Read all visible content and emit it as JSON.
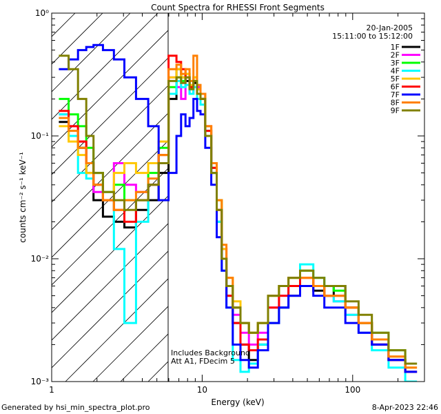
{
  "chart_data": {
    "type": "line",
    "title": "Count Spectra for RHESSI Front Segments",
    "xlabel": "Energy (keV)",
    "ylabel": "counts cm⁻² s⁻¹ keV⁻¹",
    "x_scale": "log",
    "y_scale": "log",
    "xlim": [
      1,
      300
    ],
    "ylim": [
      0.001,
      1
    ],
    "x_ticks": [
      {
        "value": 1,
        "label": "1"
      },
      {
        "value": 10,
        "label": "10"
      },
      {
        "value": 100,
        "label": "100"
      }
    ],
    "y_ticks": [
      {
        "value": 1,
        "label": "10⁰"
      },
      {
        "value": 0.1,
        "label": "10⁻¹"
      },
      {
        "value": 0.01,
        "label": "10⁻²"
      },
      {
        "value": 0.001,
        "label": "10⁻³"
      }
    ],
    "legend": {
      "placement": "top-right",
      "header": [
        "20-Jan-2005",
        "15:11:00 to 15:12:00"
      ]
    },
    "annotations": [
      "Includes Background",
      "Att A1, FDecim 5"
    ],
    "series": [
      {
        "name": "1F",
        "color": "#000000",
        "x": [
          1.2,
          1.4,
          1.6,
          1.8,
          2.0,
          2.4,
          2.8,
          3.3,
          4.0,
          4.8,
          5.5,
          6.5,
          7.0,
          7.5,
          8.0,
          8.5,
          9.0,
          9.5,
          10.0,
          11.0,
          12.0,
          13.0,
          14.0,
          15.0,
          17.0,
          19.0,
          22.0,
          25.0,
          30.0,
          35.0,
          40.0,
          50.0,
          60.0,
          70.0,
          80.0,
          100.0,
          120.0,
          150.0,
          200.0,
          250.0
        ],
        "y": [
          0.13,
          0.1,
          0.08,
          0.05,
          0.03,
          0.022,
          0.02,
          0.018,
          0.025,
          0.03,
          0.05,
          0.2,
          0.35,
          0.3,
          0.28,
          0.25,
          0.27,
          0.24,
          0.2,
          0.1,
          0.05,
          0.02,
          0.01,
          0.005,
          0.003,
          0.002,
          0.0015,
          0.002,
          0.003,
          0.004,
          0.005,
          0.006,
          0.0055,
          0.005,
          0.006,
          0.004,
          0.003,
          0.002,
          0.0015,
          0.0012
        ]
      },
      {
        "name": "2F",
        "color": "#ff00ff",
        "x": [
          1.2,
          1.4,
          1.6,
          1.8,
          2.0,
          2.4,
          2.8,
          3.3,
          4.0,
          4.8,
          5.5,
          6.5,
          7.0,
          7.5,
          8.0,
          8.5,
          9.0,
          9.5,
          10.0,
          11.0,
          12.0,
          13.0,
          14.0,
          15.0,
          17.0,
          19.0,
          22.0,
          25.0,
          30.0,
          35.0,
          40.0,
          50.0,
          60.0,
          70.0,
          80.0,
          100.0,
          120.0,
          150.0,
          200.0,
          250.0
        ],
        "y": [
          0.15,
          0.12,
          0.09,
          0.06,
          0.035,
          0.03,
          0.06,
          0.04,
          0.035,
          0.04,
          0.06,
          0.3,
          0.25,
          0.2,
          0.3,
          0.22,
          0.28,
          0.25,
          0.22,
          0.12,
          0.06,
          0.025,
          0.012,
          0.006,
          0.0035,
          0.0025,
          0.002,
          0.0025,
          0.004,
          0.005,
          0.006,
          0.007,
          0.006,
          0.005,
          0.0045,
          0.0035,
          0.0025,
          0.002,
          0.0015,
          0.0012
        ]
      },
      {
        "name": "3F",
        "color": "#00ff00",
        "x": [
          1.2,
          1.4,
          1.6,
          1.8,
          2.0,
          2.4,
          2.8,
          3.3,
          4.0,
          4.8,
          5.5,
          6.5,
          7.0,
          7.5,
          8.0,
          8.5,
          9.0,
          9.5,
          10.0,
          11.0,
          12.0,
          13.0,
          14.0,
          15.0,
          17.0,
          19.0,
          22.0,
          25.0,
          30.0,
          35.0,
          40.0,
          50.0,
          60.0,
          70.0,
          80.0,
          100.0,
          120.0,
          150.0,
          200.0,
          250.0
        ],
        "y": [
          0.2,
          0.15,
          0.12,
          0.08,
          0.05,
          0.035,
          0.04,
          0.03,
          0.03,
          0.05,
          0.08,
          0.25,
          0.3,
          0.28,
          0.32,
          0.24,
          0.3,
          0.22,
          0.2,
          0.11,
          0.055,
          0.03,
          0.01,
          0.006,
          0.004,
          0.003,
          0.0025,
          0.003,
          0.005,
          0.006,
          0.007,
          0.008,
          0.007,
          0.006,
          0.0055,
          0.004,
          0.003,
          0.0025,
          0.0018,
          0.0014
        ]
      },
      {
        "name": "4F",
        "color": "#00ffff",
        "x": [
          1.2,
          1.4,
          1.6,
          1.8,
          2.0,
          2.4,
          2.8,
          3.3,
          4.0,
          4.8,
          5.5,
          6.5,
          7.0,
          7.5,
          8.0,
          8.5,
          9.0,
          9.5,
          10.0,
          11.0,
          12.0,
          13.0,
          14.0,
          15.0,
          17.0,
          19.0,
          22.0,
          25.0,
          30.0,
          35.0,
          40.0,
          50.0,
          60.0,
          70.0,
          80.0,
          100.0,
          120.0,
          150.0,
          200.0,
          250.0
        ],
        "y": [
          0.15,
          0.1,
          0.05,
          0.045,
          0.04,
          0.03,
          0.012,
          0.003,
          0.02,
          0.04,
          0.06,
          0.22,
          0.28,
          0.25,
          0.26,
          0.22,
          0.25,
          0.2,
          0.18,
          0.1,
          0.05,
          0.02,
          0.008,
          0.004,
          0.0015,
          0.0012,
          0.0014,
          0.002,
          0.003,
          0.004,
          0.006,
          0.009,
          0.007,
          0.005,
          0.0045,
          0.0035,
          0.0025,
          0.0018,
          0.0013,
          0.001
        ]
      },
      {
        "name": "5F",
        "color": "#ffc800",
        "x": [
          1.2,
          1.4,
          1.6,
          1.8,
          2.0,
          2.4,
          2.8,
          3.3,
          4.0,
          4.8,
          5.5,
          6.5,
          7.0,
          7.5,
          8.0,
          8.5,
          9.0,
          9.5,
          10.0,
          11.0,
          12.0,
          13.0,
          14.0,
          15.0,
          17.0,
          19.0,
          22.0,
          25.0,
          30.0,
          35.0,
          40.0,
          50.0,
          60.0,
          70.0,
          80.0,
          100.0,
          120.0,
          150.0,
          200.0,
          250.0
        ],
        "y": [
          0.12,
          0.09,
          0.07,
          0.05,
          0.04,
          0.03,
          0.05,
          0.06,
          0.05,
          0.06,
          0.09,
          0.3,
          0.35,
          0.3,
          0.32,
          0.26,
          0.3,
          0.24,
          0.22,
          0.12,
          0.06,
          0.03,
          0.012,
          0.007,
          0.0045,
          0.003,
          0.0025,
          0.003,
          0.005,
          0.006,
          0.007,
          0.007,
          0.006,
          0.005,
          0.005,
          0.004,
          0.003,
          0.0022,
          0.0016,
          0.0013
        ]
      },
      {
        "name": "6F",
        "color": "#ff0000",
        "x": [
          1.2,
          1.4,
          1.6,
          1.8,
          2.0,
          2.4,
          2.8,
          3.3,
          4.0,
          4.8,
          5.5,
          6.5,
          7.0,
          7.5,
          8.0,
          8.5,
          9.0,
          9.5,
          10.0,
          11.0,
          12.0,
          13.0,
          14.0,
          15.0,
          17.0,
          19.0,
          22.0,
          25.0,
          30.0,
          35.0,
          40.0,
          50.0,
          60.0,
          70.0,
          80.0,
          100.0,
          120.0,
          150.0,
          200.0,
          250.0
        ],
        "y": [
          0.16,
          0.12,
          0.09,
          0.06,
          0.04,
          0.03,
          0.025,
          0.02,
          0.03,
          0.04,
          0.07,
          0.45,
          0.4,
          0.35,
          0.3,
          0.25,
          0.28,
          0.22,
          0.2,
          0.11,
          0.055,
          0.025,
          0.01,
          0.005,
          0.003,
          0.002,
          0.0018,
          0.0022,
          0.004,
          0.005,
          0.006,
          0.007,
          0.006,
          0.005,
          0.005,
          0.004,
          0.003,
          0.002,
          0.0015,
          0.0012
        ]
      },
      {
        "name": "7F",
        "color": "#0000ff",
        "x": [
          1.2,
          1.4,
          1.6,
          1.8,
          2.0,
          2.4,
          2.8,
          3.3,
          4.0,
          4.8,
          5.5,
          6.5,
          7.0,
          7.5,
          8.0,
          8.5,
          9.0,
          9.5,
          10.0,
          11.0,
          12.0,
          13.0,
          14.0,
          15.0,
          17.0,
          19.0,
          22.0,
          25.0,
          30.0,
          35.0,
          40.0,
          50.0,
          60.0,
          70.0,
          80.0,
          100.0,
          120.0,
          150.0,
          200.0,
          250.0
        ],
        "y": [
          0.35,
          0.42,
          0.5,
          0.53,
          0.55,
          0.5,
          0.42,
          0.3,
          0.2,
          0.12,
          0.03,
          0.05,
          0.1,
          0.15,
          0.12,
          0.14,
          0.2,
          0.16,
          0.15,
          0.08,
          0.04,
          0.015,
          0.008,
          0.004,
          0.002,
          0.0015,
          0.0013,
          0.0018,
          0.003,
          0.004,
          0.005,
          0.006,
          0.005,
          0.004,
          0.004,
          0.003,
          0.0025,
          0.002,
          0.0015,
          0.0012
        ]
      },
      {
        "name": "8F",
        "color": "#ff8000",
        "x": [
          1.2,
          1.4,
          1.6,
          1.8,
          2.0,
          2.4,
          2.8,
          3.3,
          4.0,
          4.8,
          5.5,
          6.5,
          7.0,
          7.5,
          8.0,
          8.5,
          9.0,
          9.5,
          10.0,
          11.0,
          12.0,
          13.0,
          14.0,
          15.0,
          17.0,
          19.0,
          22.0,
          25.0,
          30.0,
          35.0,
          40.0,
          50.0,
          60.0,
          70.0,
          80.0,
          100.0,
          120.0,
          150.0,
          200.0,
          250.0
        ],
        "y": [
          0.14,
          0.11,
          0.08,
          0.06,
          0.04,
          0.03,
          0.025,
          0.03,
          0.035,
          0.045,
          0.07,
          0.35,
          0.38,
          0.32,
          0.35,
          0.28,
          0.45,
          0.26,
          0.22,
          0.12,
          0.06,
          0.03,
          0.013,
          0.007,
          0.004,
          0.003,
          0.0025,
          0.003,
          0.005,
          0.006,
          0.007,
          0.007,
          0.006,
          0.005,
          0.005,
          0.004,
          0.003,
          0.0022,
          0.0016,
          0.0013
        ]
      },
      {
        "name": "9F",
        "color": "#808000",
        "x": [
          1.2,
          1.4,
          1.6,
          1.8,
          2.0,
          2.4,
          2.8,
          3.3,
          4.0,
          4.8,
          5.5,
          6.5,
          7.0,
          7.5,
          8.0,
          8.5,
          9.0,
          9.5,
          10.0,
          11.0,
          12.0,
          13.0,
          14.0,
          15.0,
          17.0,
          19.0,
          22.0,
          25.0,
          30.0,
          35.0,
          40.0,
          50.0,
          60.0,
          70.0,
          80.0,
          100.0,
          120.0,
          150.0,
          200.0,
          250.0
        ],
        "y": [
          0.45,
          0.35,
          0.2,
          0.1,
          0.05,
          0.035,
          0.03,
          0.025,
          0.03,
          0.04,
          0.06,
          0.28,
          0.3,
          0.27,
          0.3,
          0.24,
          0.28,
          0.22,
          0.2,
          0.1,
          0.05,
          0.025,
          0.01,
          0.006,
          0.004,
          0.003,
          0.0025,
          0.003,
          0.005,
          0.006,
          0.007,
          0.008,
          0.007,
          0.006,
          0.006,
          0.0045,
          0.0035,
          0.0025,
          0.0018,
          0.0014
        ]
      }
    ]
  },
  "footer": {
    "left": "Generated by hsi_min_spectra_plot.pro",
    "right": "8-Apr-2023 22:46"
  }
}
